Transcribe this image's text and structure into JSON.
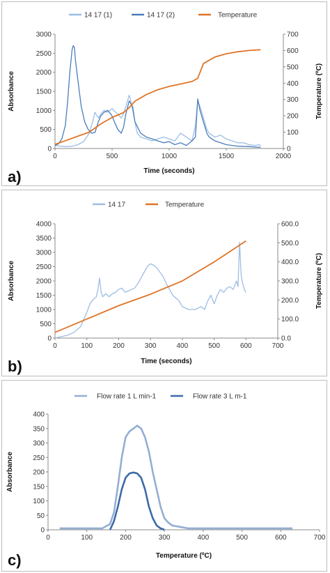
{
  "panels": {
    "a": {
      "label": "a)"
    },
    "b": {
      "label": "b)"
    },
    "c": {
      "label": "c)"
    }
  },
  "chart_data": [
    {
      "type": "line",
      "panel": "a",
      "xlabel": "Time (seconds)",
      "ylabel": "Absorbance",
      "y2label": "Temperature (ºC)",
      "xlim": [
        0,
        2000
      ],
      "ylim": [
        0,
        3000
      ],
      "y2lim": [
        0,
        700
      ],
      "xticks": [
        0,
        500,
        1000,
        1500,
        2000
      ],
      "yticks": [
        0,
        500,
        1000,
        1500,
        2000,
        2500,
        3000
      ],
      "y2ticks": [
        0,
        100,
        200,
        300,
        400,
        500,
        600,
        700
      ],
      "legend_position": "top",
      "series": [
        {
          "name": "14 17 (1)",
          "axis": "left",
          "color": "#9dbde3",
          "x": [
            0,
            50,
            100,
            150,
            200,
            250,
            300,
            330,
            350,
            380,
            400,
            430,
            450,
            480,
            500,
            520,
            550,
            580,
            600,
            630,
            650,
            660,
            680,
            700,
            720,
            750,
            800,
            850,
            900,
            950,
            1000,
            1050,
            1100,
            1150,
            1200,
            1230,
            1250,
            1270,
            1290,
            1310,
            1330,
            1350,
            1400,
            1450,
            1500,
            1550,
            1600,
            1650,
            1700,
            1750,
            1790,
            1800
          ],
          "y": [
            80,
            60,
            50,
            60,
            100,
            180,
            400,
            700,
            950,
            800,
            900,
            1000,
            950,
            1000,
            1050,
            980,
            900,
            800,
            900,
            1200,
            1400,
            1300,
            1000,
            700,
            400,
            300,
            250,
            200,
            250,
            300,
            250,
            200,
            400,
            300,
            200,
            600,
            1250,
            1100,
            900,
            700,
            500,
            400,
            300,
            350,
            250,
            200,
            150,
            150,
            100,
            80,
            100,
            60
          ]
        },
        {
          "name": "14 17 (2)",
          "axis": "left",
          "color": "#4a7ebb",
          "x": [
            0,
            30,
            60,
            90,
            110,
            130,
            150,
            160,
            170,
            180,
            200,
            230,
            260,
            290,
            320,
            350,
            380,
            400,
            430,
            460,
            490,
            500,
            520,
            550,
            580,
            600,
            620,
            650,
            680,
            700,
            750,
            800,
            850,
            900,
            950,
            1000,
            1050,
            1100,
            1150,
            1200,
            1230,
            1250,
            1270,
            1290,
            1310,
            1330,
            1350,
            1400,
            1450,
            1500,
            1550,
            1600,
            1700,
            1800
          ],
          "y": [
            80,
            120,
            250,
            600,
            1200,
            2000,
            2600,
            2700,
            2650,
            2300,
            1800,
            1100,
            700,
            500,
            400,
            420,
            700,
            850,
            950,
            1000,
            900,
            850,
            700,
            500,
            400,
            550,
            900,
            1250,
            1100,
            700,
            400,
            300,
            250,
            200,
            150,
            180,
            100,
            150,
            80,
            200,
            300,
            1300,
            1000,
            800,
            600,
            400,
            300,
            200,
            150,
            100,
            80,
            60,
            50,
            30
          ]
        },
        {
          "name": "Temperature",
          "axis": "right",
          "color": "#e07426",
          "x": [
            0,
            100,
            200,
            300,
            400,
            500,
            600,
            650,
            700,
            800,
            900,
            1000,
            1100,
            1200,
            1250,
            1300,
            1400,
            1500,
            1600,
            1700,
            1800
          ],
          "y": [
            25,
            50,
            75,
            100,
            150,
            190,
            220,
            250,
            290,
            330,
            360,
            380,
            395,
            410,
            430,
            520,
            560,
            580,
            592,
            600,
            605
          ]
        }
      ]
    },
    {
      "type": "line",
      "panel": "b",
      "xlabel": "Time (seconds)",
      "ylabel": "Absorbance",
      "y2label": "Temperature (ºC)",
      "xlim": [
        0,
        700
      ],
      "ylim": [
        0,
        4000
      ],
      "y2lim": [
        0,
        600
      ],
      "xticks": [
        0,
        100,
        200,
        300,
        400,
        500,
        600,
        700
      ],
      "yticks": [
        0,
        500,
        1000,
        1500,
        2000,
        2500,
        3000,
        3500,
        4000
      ],
      "y2ticks": [
        "0.0",
        "100.0",
        "200.0",
        "300.0",
        "400.0",
        "500.0",
        "600.0"
      ],
      "legend_position": "top",
      "series": [
        {
          "name": "14 17",
          "axis": "left",
          "color": "#9dbde3",
          "x": [
            0,
            20,
            40,
            60,
            80,
            100,
            110,
            120,
            130,
            135,
            140,
            145,
            150,
            160,
            170,
            180,
            190,
            200,
            210,
            220,
            230,
            240,
            250,
            260,
            270,
            280,
            290,
            300,
            310,
            320,
            330,
            340,
            350,
            360,
            370,
            380,
            390,
            400,
            420,
            440,
            450,
            460,
            470,
            480,
            490,
            500,
            510,
            520,
            530,
            540,
            550,
            560,
            570,
            575,
            580,
            585,
            590,
            595,
            600
          ],
          "y": [
            0,
            50,
            100,
            200,
            400,
            900,
            1200,
            1350,
            1450,
            1700,
            2100,
            1600,
            1450,
            1550,
            1450,
            1550,
            1600,
            1700,
            1750,
            1600,
            1650,
            1700,
            1750,
            1900,
            2100,
            2300,
            2500,
            2600,
            2550,
            2450,
            2300,
            2150,
            1900,
            1700,
            1500,
            1400,
            1300,
            1100,
            1000,
            1000,
            1050,
            1100,
            1000,
            1300,
            1500,
            1200,
            1500,
            1700,
            1600,
            1750,
            1800,
            1700,
            2000,
            1800,
            3350,
            2200,
            1900,
            1700,
            1600
          ]
        },
        {
          "name": "Temperature",
          "axis": "right",
          "color": "#e07426",
          "x": [
            0,
            100,
            200,
            300,
            400,
            500,
            600
          ],
          "y": [
            30,
            100,
            170,
            230,
            300,
            400,
            510
          ]
        }
      ]
    },
    {
      "type": "line",
      "panel": "c",
      "xlabel": "Temperature (ºC)",
      "ylabel": "Absorbance",
      "xlim": [
        0,
        700
      ],
      "ylim": [
        0,
        400
      ],
      "xticks": [
        0,
        100,
        200,
        300,
        400,
        500,
        600,
        700
      ],
      "yticks": [
        0,
        50,
        100,
        150,
        200,
        250,
        300,
        350,
        400
      ],
      "legend_position": "top",
      "series": [
        {
          "name": "Flow rate 1 L min-1",
          "axis": "left",
          "color": "#93aed4",
          "x": [
            30,
            60,
            100,
            140,
            160,
            170,
            180,
            190,
            200,
            210,
            220,
            230,
            240,
            250,
            260,
            270,
            280,
            290,
            300,
            310,
            320,
            340,
            360,
            400,
            450,
            500,
            550,
            600,
            630
          ],
          "y": [
            5,
            5,
            5,
            5,
            20,
            60,
            150,
            250,
            320,
            340,
            350,
            360,
            350,
            320,
            270,
            200,
            140,
            80,
            40,
            25,
            15,
            10,
            5,
            5,
            5,
            5,
            5,
            5,
            5
          ]
        },
        {
          "name": "Flow rate 3 L m-1",
          "axis": "left",
          "color": "#3b6aa8",
          "x": [
            160,
            170,
            180,
            190,
            200,
            210,
            220,
            230,
            240,
            250,
            260,
            270,
            280,
            290,
            300
          ],
          "y": [
            0,
            30,
            80,
            140,
            180,
            195,
            198,
            195,
            180,
            140,
            80,
            40,
            15,
            5,
            0
          ]
        }
      ]
    }
  ]
}
